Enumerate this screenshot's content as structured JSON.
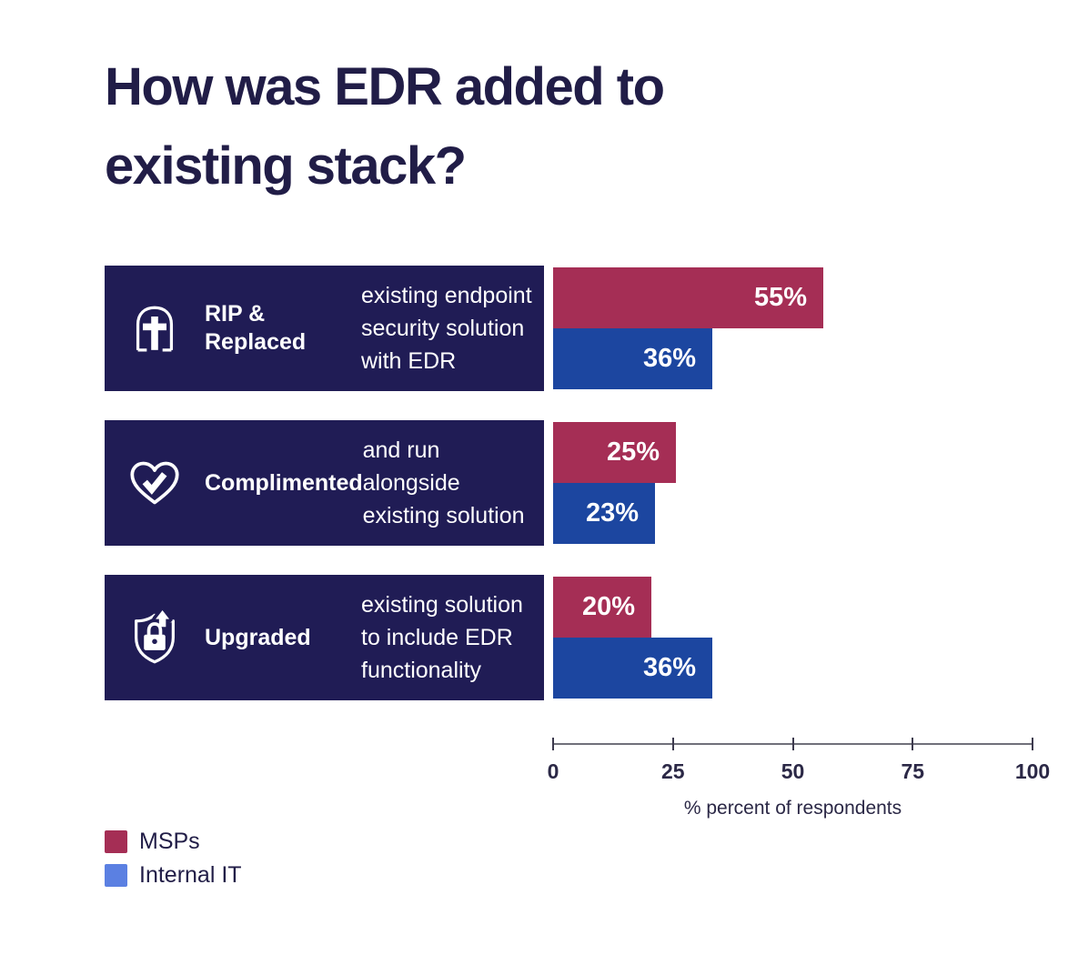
{
  "title": {
    "text": "How was EDR added to\nexisting stack?"
  },
  "chart_data": {
    "type": "bar",
    "orientation": "horizontal",
    "title": "How was EDR added to existing stack?",
    "categories": [
      "RIP & Replaced",
      "Complimented",
      "Upgraded"
    ],
    "series": [
      {
        "name": "MSPs",
        "color": "#a52e55",
        "values": [
          55,
          25,
          20
        ]
      },
      {
        "name": "Internal IT",
        "color": "#1c46a0",
        "values": [
          36,
          23,
          36
        ]
      }
    ],
    "xlabel": "% percent of respondents",
    "xlim": [
      0,
      100
    ],
    "ticks": [
      0,
      25,
      50,
      75,
      100
    ],
    "tick_labels": [
      "0",
      "25",
      "50",
      "75",
      "100"
    ],
    "grid": false,
    "legend_position": "bottom-left",
    "value_labels": "inside-end, white bold, percent format"
  },
  "rows": [
    {
      "label": "RIP &\nReplaced",
      "description": "existing endpoint\nsecurity solution\nwith EDR",
      "icon": "tombstone-cross-icon",
      "msp_label": "55%",
      "it_label": "36%"
    },
    {
      "label": "Complimented",
      "description": "and run\nalongside\nexisting solution",
      "icon": "heart-check-icon",
      "msp_label": "25%",
      "it_label": "23%"
    },
    {
      "label": "Upgraded",
      "description": "existing solution\nto include EDR\nfunctionality",
      "icon": "shield-lock-upgrade-icon",
      "msp_label": "20%",
      "it_label": "36%"
    }
  ],
  "axis": {
    "caption": "% percent of respondents"
  },
  "legend": [
    {
      "label": "MSPs",
      "color": "#a52e55"
    },
    {
      "label": "Internal IT",
      "color": "#5b80e2"
    }
  ],
  "colors": {
    "background": "#ffffff",
    "title_text": "#211d47",
    "category_box": "#201c55",
    "msp_bar": "#a52e55",
    "it_bar": "#1c46a0",
    "legend_it_swatch": "#5b80e2",
    "axis_line": "#70707a",
    "axis_text": "#2b2846"
  }
}
